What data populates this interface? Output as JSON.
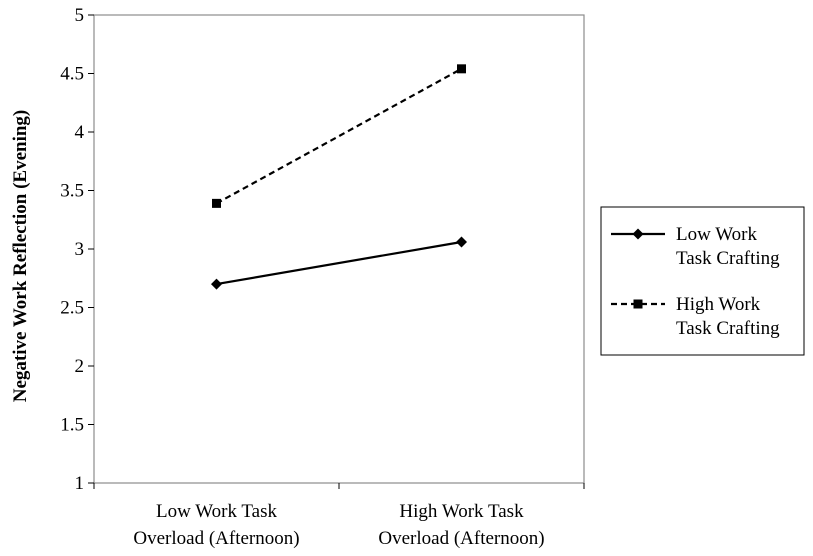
{
  "chart_data": {
    "type": "line",
    "title": "",
    "xlabel": "",
    "ylabel": "Negative Work Reflection (Evening)",
    "categories": [
      [
        "Low Work Task",
        "Overload (Afternoon)"
      ],
      [
        "High Work Task",
        "Overload (Afternoon)"
      ]
    ],
    "ylim": [
      1,
      5
    ],
    "yticks": [
      "1",
      "1.5",
      "2",
      "2.5",
      "3",
      "3.5",
      "4",
      "4.5",
      "5"
    ],
    "grid": false,
    "legend_position": "right",
    "series": [
      {
        "name": "Low Work Task Crafting",
        "name_lines": [
          "Low Work",
          "Task Crafting"
        ],
        "values": [
          2.7,
          3.06
        ],
        "line_style": "solid",
        "marker": "diamond",
        "color": "#000000"
      },
      {
        "name": "High Work Task Crafting",
        "name_lines": [
          "High Work",
          "Task Crafting"
        ],
        "values": [
          3.39,
          4.54
        ],
        "line_style": "dashed",
        "marker": "square",
        "color": "#000000"
      }
    ]
  }
}
